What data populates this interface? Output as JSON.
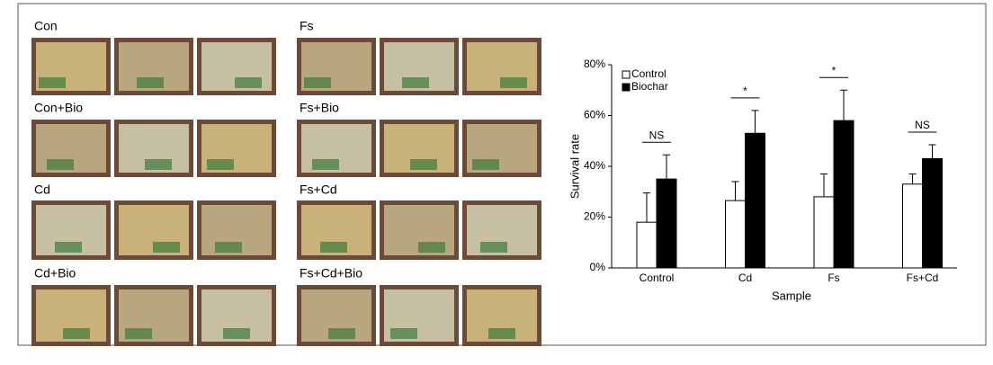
{
  "panels": {
    "labels": [
      "Con",
      "Fs",
      "Con+Bio",
      "Fs+Bio",
      "Cd",
      "Fs+Cd",
      "Cd+Bio",
      "Fs+Cd+Bio"
    ]
  },
  "chart_data": {
    "type": "bar",
    "categories": [
      "Control",
      "Cd",
      "Fs",
      "Fs+Cd"
    ],
    "series": [
      {
        "name": "Control",
        "color": "#ffffff",
        "values": [
          18,
          26.5,
          28,
          33
        ],
        "errors": [
          11.5,
          7.5,
          9,
          4
        ]
      },
      {
        "name": "Biochar",
        "color": "#000000",
        "values": [
          35,
          53,
          58,
          43
        ],
        "errors": [
          9.5,
          9,
          12,
          5.5
        ]
      }
    ],
    "annotations": [
      "NS",
      "*",
      "*",
      "NS"
    ],
    "xlabel": "Sample",
    "ylabel": "Survival rate",
    "ylim": [
      0,
      80
    ],
    "yticks": [
      {
        "value": 0,
        "label": "0%"
      },
      {
        "value": 20,
        "label": "20%"
      },
      {
        "value": 40,
        "label": "40%"
      },
      {
        "value": 60,
        "label": "60%"
      },
      {
        "value": 80,
        "label": "80%"
      }
    ],
    "legend": "top-left",
    "grid": false
  }
}
